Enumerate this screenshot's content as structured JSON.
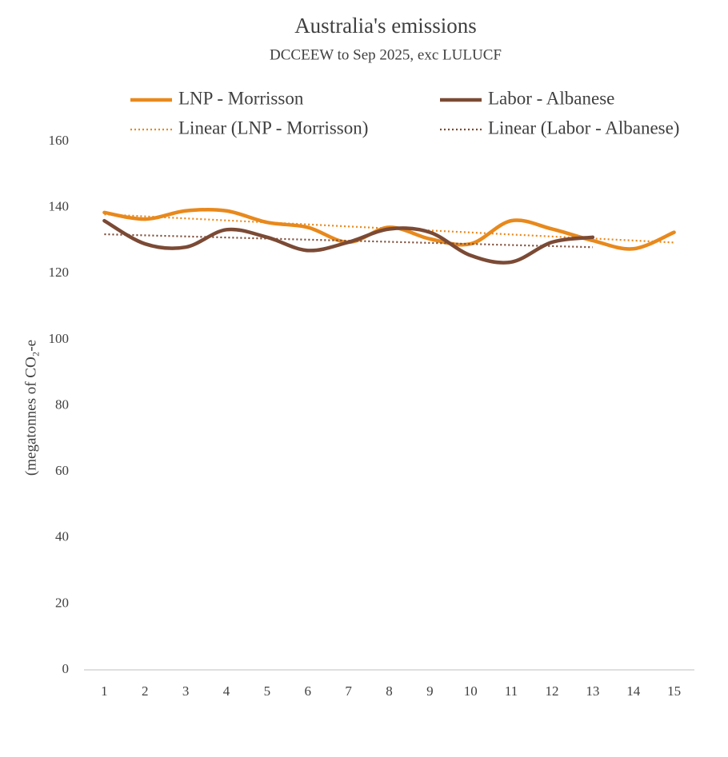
{
  "chart_data": {
    "type": "line",
    "title": "Australia's emissions",
    "subtitle": "DCCEEW to Sep 2025, exc LULUCF",
    "y_label": "(megatonnes of CO₂-e",
    "categories": [
      1,
      2,
      3,
      4,
      5,
      6,
      7,
      8,
      9,
      10,
      11,
      12,
      13,
      14,
      15
    ],
    "series": [
      {
        "name": "LNP - Morrisson",
        "color": "#e8891c",
        "values": [
          138.5,
          136.5,
          139,
          139,
          135.5,
          134,
          129.5,
          134,
          130.5,
          129,
          136,
          133.5,
          130,
          127.5,
          132.5
        ],
        "trendline": {
          "name": "Linear (LNP - Morrisson)",
          "style": "dotted"
        }
      },
      {
        "name": "Labor - Albanese",
        "color": "#7b4a35",
        "values": [
          136,
          129,
          128,
          133.3,
          131,
          127,
          129.5,
          133.5,
          132.5,
          125.5,
          123.5,
          129.5,
          131,
          null,
          null
        ],
        "trendline": {
          "name": "Linear (Labor - Albanese)",
          "style": "dotted"
        }
      }
    ],
    "ylim": [
      0,
      160
    ],
    "yticks": [
      0,
      20,
      40,
      60,
      80,
      100,
      120,
      140,
      160
    ],
    "grid": false,
    "smooth": true,
    "legend": "top"
  }
}
